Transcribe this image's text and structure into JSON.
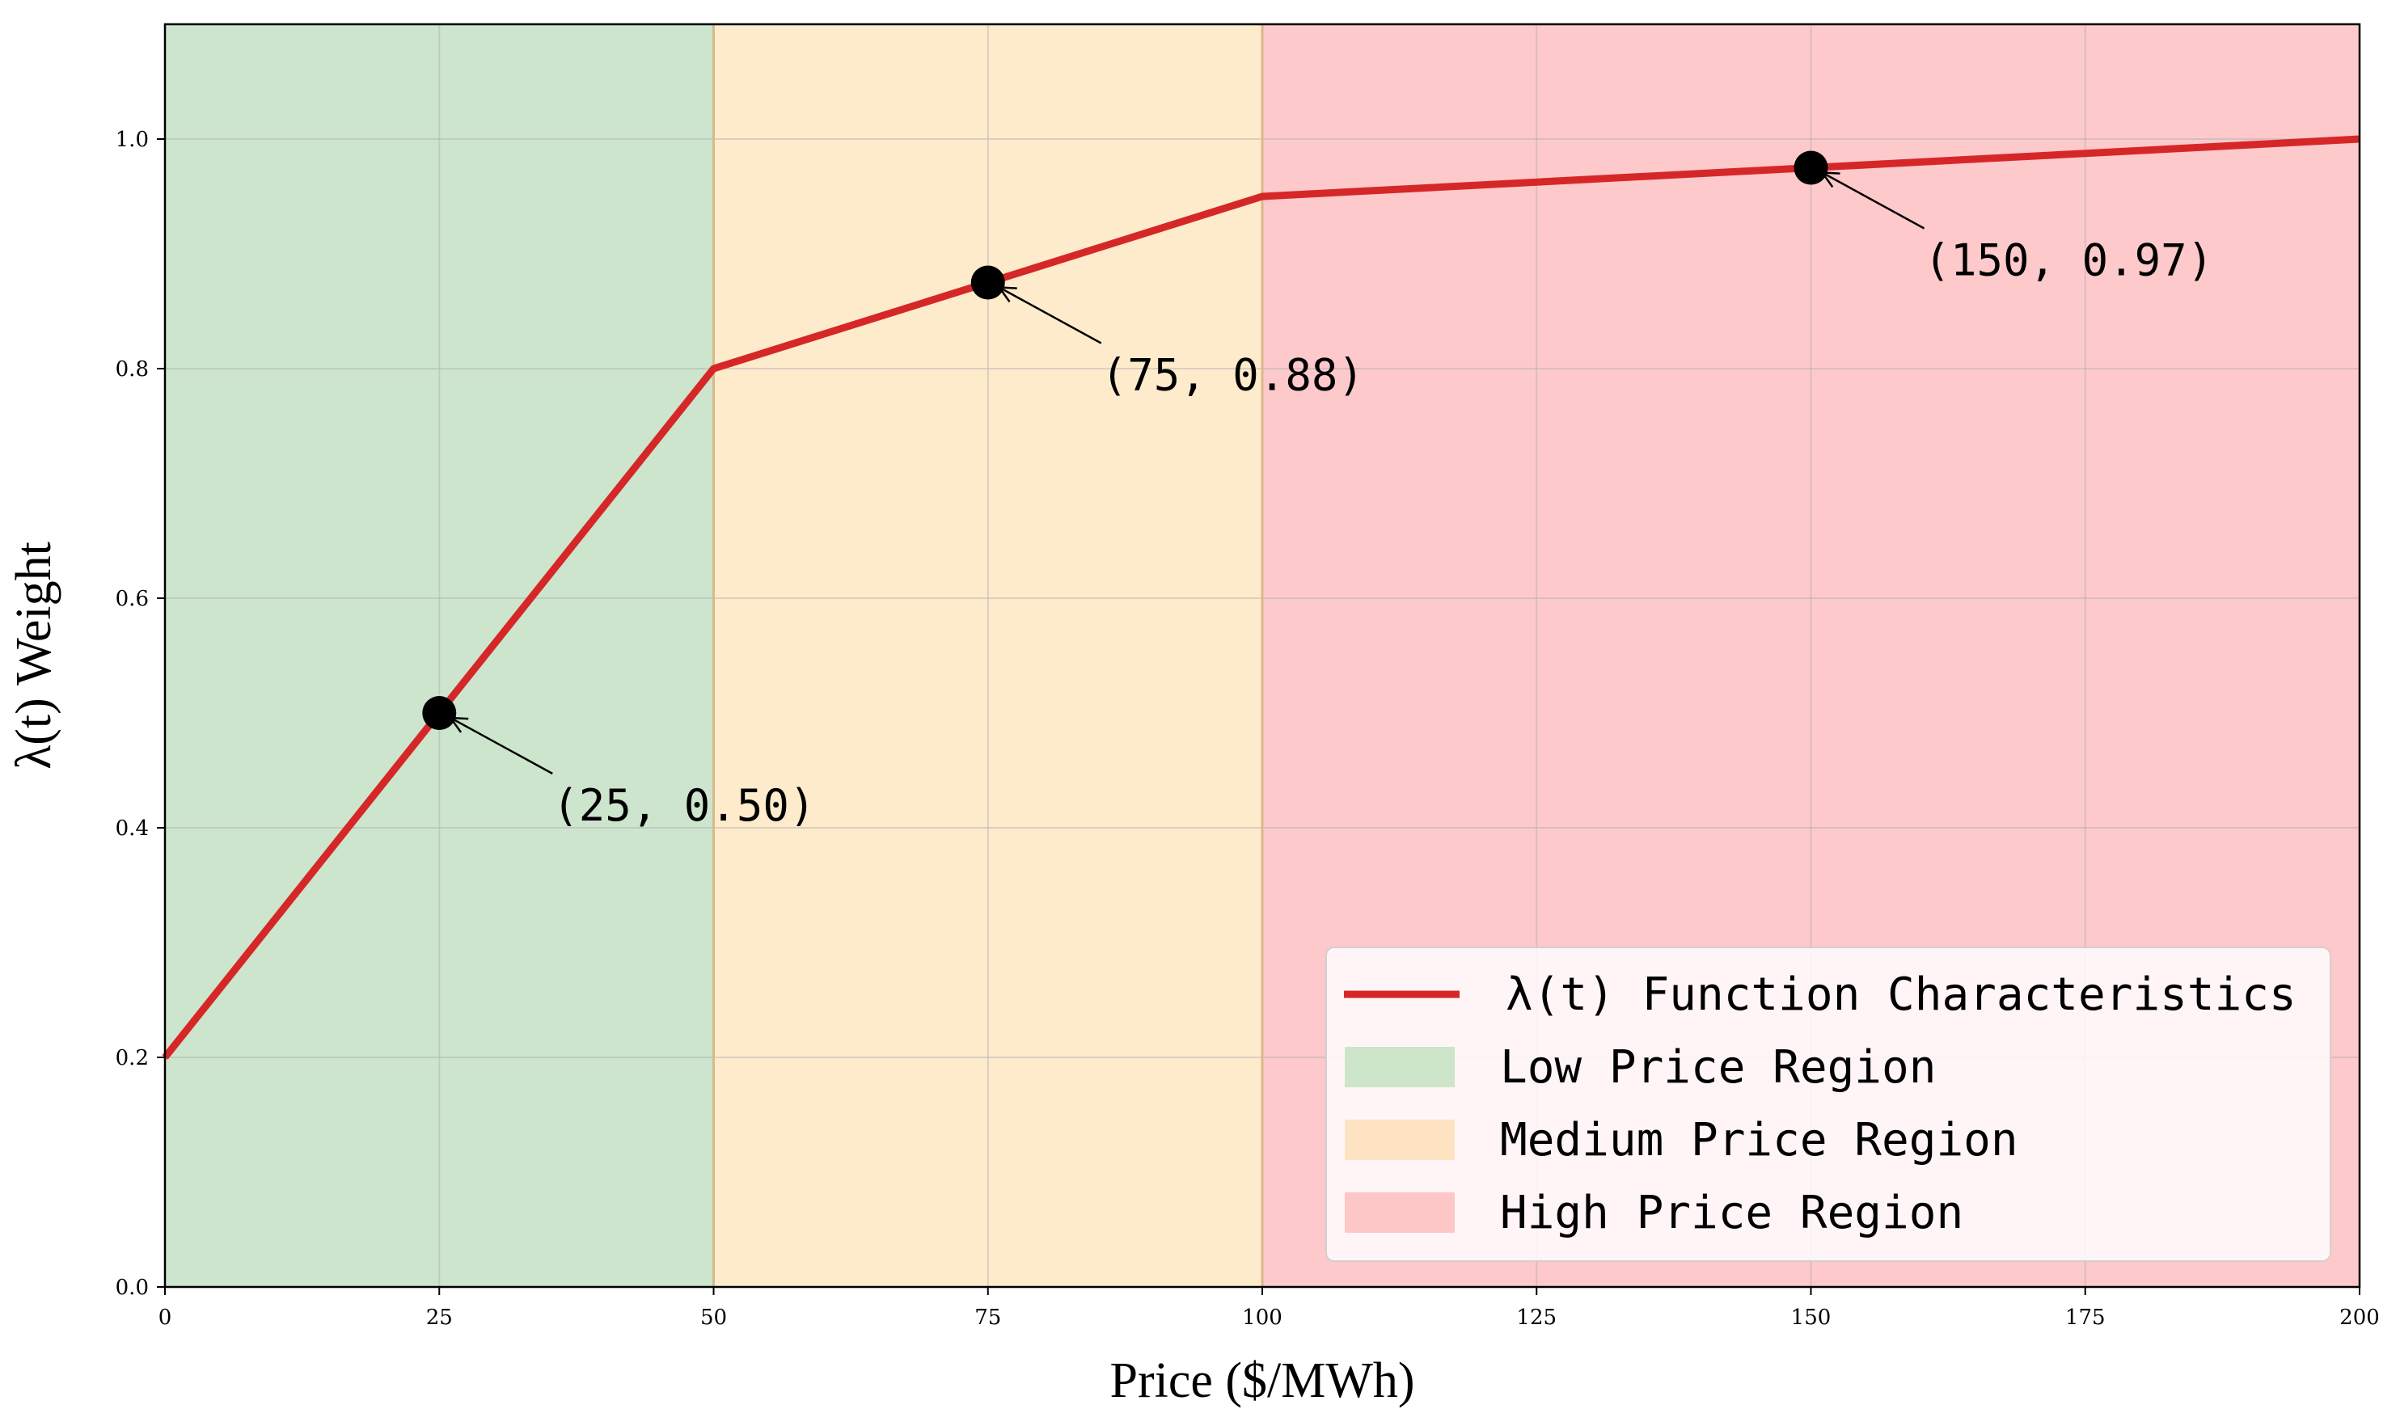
{
  "chart_data": {
    "type": "line",
    "xlabel": "Price ($/MWh)",
    "ylabel": "λ(t) Weight",
    "xlim": [
      0,
      200
    ],
    "ylim": [
      0,
      1.1
    ],
    "xticks": [
      0,
      25,
      50,
      75,
      100,
      125,
      150,
      175,
      200
    ],
    "yticks": [
      0.0,
      0.2,
      0.4,
      0.6,
      0.8,
      1.0
    ],
    "xtick_labels": [
      "0",
      "25",
      "50",
      "75",
      "100",
      "125",
      "150",
      "175",
      "200"
    ],
    "ytick_labels": [
      "0.0",
      "0.2",
      "0.4",
      "0.6",
      "0.8",
      "1.0"
    ],
    "grid": true,
    "legend_position": "bottom-right",
    "series": [
      {
        "name": "λ(t) Function Characteristics",
        "color": "#d62728",
        "x": [
          0,
          50,
          100,
          200
        ],
        "y": [
          0.2,
          0.8,
          0.95,
          1.0
        ]
      }
    ],
    "regions": [
      {
        "name": "Low Price Region",
        "x_start": 0,
        "x_end": 50,
        "color": "#cde4cd",
        "legend_color": "#cde5c8"
      },
      {
        "name": "Medium Price Region",
        "x_start": 50,
        "x_end": 100,
        "color": "#fdebcc",
        "legend_color": "#fde3c2"
      },
      {
        "name": "High Price Region",
        "x_start": 100,
        "x_end": 200,
        "color": "#fdc9cb",
        "legend_color": "#fdc7c7"
      }
    ],
    "annotations": [
      {
        "x": 25,
        "y": 0.5,
        "text": "(25, 0.50)"
      },
      {
        "x": 75,
        "y": 0.875,
        "text": "(75, 0.88)"
      },
      {
        "x": 150,
        "y": 0.975,
        "text": "(150, 0.97)"
      }
    ]
  }
}
